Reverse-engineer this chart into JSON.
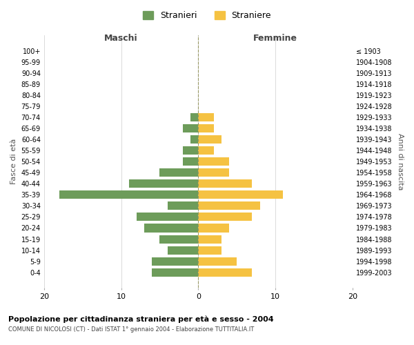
{
  "age_groups": [
    "0-4",
    "5-9",
    "10-14",
    "15-19",
    "20-24",
    "25-29",
    "30-34",
    "35-39",
    "40-44",
    "45-49",
    "50-54",
    "55-59",
    "60-64",
    "65-69",
    "70-74",
    "75-79",
    "80-84",
    "85-89",
    "90-94",
    "95-99",
    "100+"
  ],
  "birth_years": [
    "1999-2003",
    "1994-1998",
    "1989-1993",
    "1984-1988",
    "1979-1983",
    "1974-1978",
    "1969-1973",
    "1964-1968",
    "1959-1963",
    "1954-1958",
    "1949-1953",
    "1944-1948",
    "1939-1943",
    "1934-1938",
    "1929-1933",
    "1924-1928",
    "1919-1923",
    "1914-1918",
    "1909-1913",
    "1904-1908",
    "≤ 1903"
  ],
  "maschi": [
    6,
    6,
    4,
    5,
    7,
    8,
    4,
    18,
    9,
    5,
    2,
    2,
    1,
    2,
    1,
    0,
    0,
    0,
    0,
    0,
    0
  ],
  "femmine": [
    7,
    5,
    3,
    3,
    4,
    7,
    8,
    11,
    7,
    4,
    4,
    2,
    3,
    2,
    2,
    0,
    0,
    0,
    0,
    0,
    0
  ],
  "maschi_color": "#6d9c5a",
  "femmine_color": "#f5c242",
  "bg_color": "#ffffff",
  "grid_color": "#cccccc",
  "title1": "Popolazione per cittadinanza straniera per età e sesso - 2004",
  "title2": "COMUNE DI NICOLOSI (CT) - Dati ISTAT 1° gennaio 2004 - Elaborazione TUTTITALIA.IT",
  "xlabel_left": "Maschi",
  "xlabel_right": "Femmine",
  "ylabel_left": "Fasce di età",
  "ylabel_right": "Anni di nascita",
  "legend_stranieri": "Stranieri",
  "legend_straniere": "Straniere",
  "xlim": 20
}
